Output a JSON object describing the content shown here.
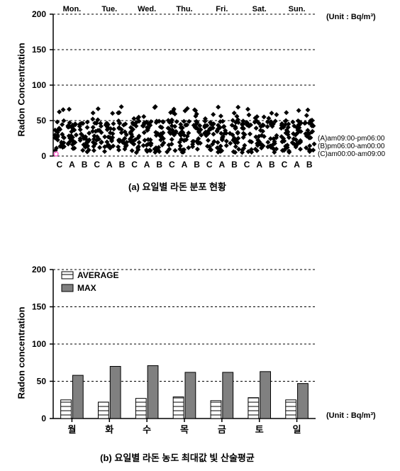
{
  "chartA": {
    "type": "scatter",
    "ylabel": "Radon Concentration",
    "ylim": [
      0,
      200
    ],
    "yticks": [
      0,
      50,
      100,
      150,
      200
    ],
    "days": [
      "Mon.",
      "Tue.",
      "Wed.",
      "Thu.",
      "Fri.",
      "Sat.",
      "Sun."
    ],
    "unit_label": "(Unit : Bq/m³)",
    "x_groups": [
      "C",
      "A",
      "B",
      "C",
      "A",
      "B",
      "C",
      "A",
      "B",
      "C",
      "A",
      "B",
      "C",
      "A",
      "B",
      "C",
      "A",
      "B",
      "C",
      "A",
      "B"
    ],
    "caption": "(a) 요일별 라돈 분포 현황",
    "legend_lines": [
      "(A)am09:00-pm06:00",
      "(B)pm06:00-am00:00",
      "(C)am00:00-am09:00"
    ],
    "marker_color": "#000000",
    "marker_shape": "diamond",
    "grid_color": "#000000",
    "grid_dash": true,
    "background": "#ffffff",
    "label_fontsize": 13,
    "tick_fontsize": 12,
    "data_range": [
      0,
      70
    ],
    "points_per_group": 28
  },
  "chartB": {
    "type": "bar",
    "ylabel": "Radon concentration",
    "ylim": [
      0,
      200
    ],
    "yticks": [
      0,
      50,
      100,
      150,
      200
    ],
    "categories": [
      "월",
      "화",
      "수",
      "목",
      "금",
      "토",
      "일"
    ],
    "series": [
      {
        "name": "AVERAGE",
        "values": [
          25,
          22,
          27,
          29,
          24,
          28,
          25
        ],
        "fill": "hatch",
        "color": "#ffffff",
        "border": "#000000"
      },
      {
        "name": "MAX",
        "values": [
          58,
          70,
          71,
          62,
          62,
          63,
          47
        ],
        "fill": "solid",
        "color": "#808080",
        "border": "#000000"
      }
    ],
    "unit_label": "(Unit : Bq/m³)",
    "caption": "(b) 요일별 라돈 농도 최대값 빛 산술평균",
    "grid_color": "#000000",
    "grid_dash": true,
    "background": "#ffffff",
    "bar_width": 0.35,
    "label_fontsize": 13,
    "tick_fontsize": 12
  }
}
